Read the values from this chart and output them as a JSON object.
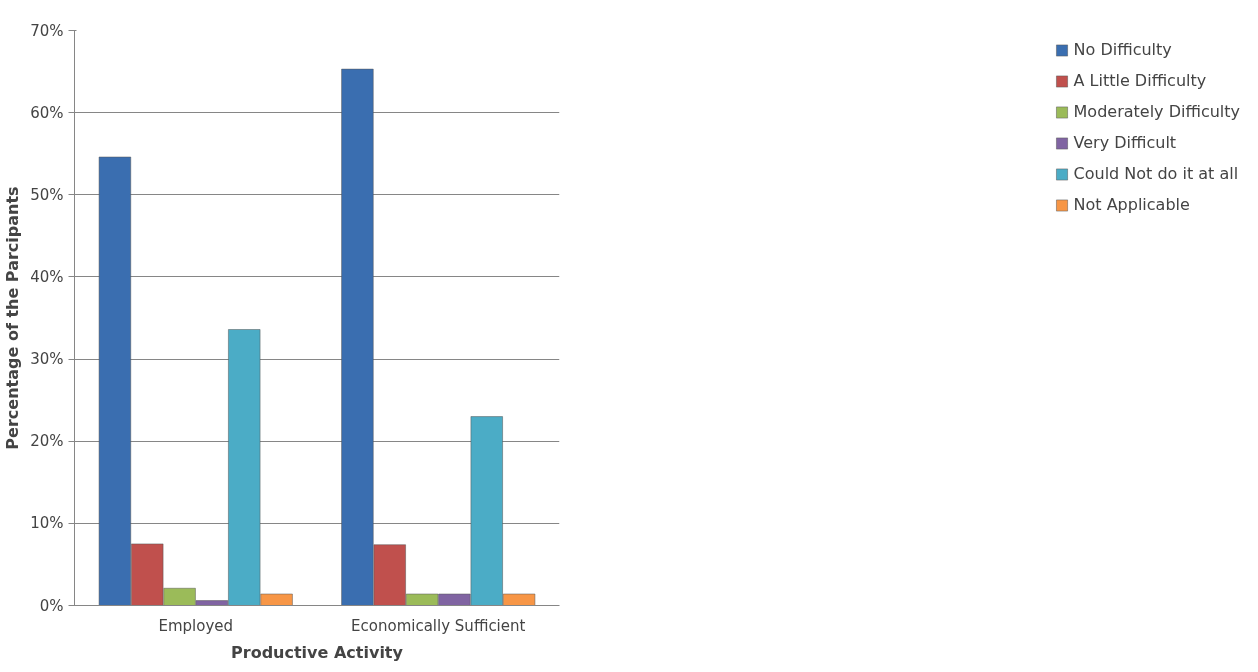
{
  "chart_data": {
    "type": "bar",
    "xlabel": "Productive Activity",
    "ylabel": "Percentage of the Parcipants",
    "categories": [
      "Employed",
      "Economically Sufficient"
    ],
    "series": [
      {
        "name": "No Difficulty",
        "color": "#3a6eb0",
        "values": [
          54.6,
          65.3
        ]
      },
      {
        "name": "A Little Difficulty",
        "color": "#c0504d",
        "values": [
          7.5,
          7.4
        ]
      },
      {
        "name": "Moderately Difficulty",
        "color": "#9bbb59",
        "values": [
          2.1,
          1.4
        ]
      },
      {
        "name": "Very Difficult",
        "color": "#8064a2",
        "values": [
          0.6,
          1.4
        ]
      },
      {
        "name": "Could Not do it at all",
        "color": "#4bacc6",
        "values": [
          33.6,
          23.0
        ]
      },
      {
        "name": "Not Applicable",
        "color": "#f79646",
        "values": [
          1.4,
          1.4
        ]
      }
    ],
    "ylim": [
      0,
      70
    ],
    "yticks": [
      {
        "value": 0,
        "label": "0%"
      },
      {
        "value": 10,
        "label": "10%"
      },
      {
        "value": 20,
        "label": "20%"
      },
      {
        "value": 30,
        "label": "30%"
      },
      {
        "value": 40,
        "label": "40%"
      },
      {
        "value": 50,
        "label": "50%"
      },
      {
        "value": 60,
        "label": "60%"
      },
      {
        "value": 70,
        "label": "70%"
      }
    ],
    "grid": "y",
    "legend": "right"
  }
}
